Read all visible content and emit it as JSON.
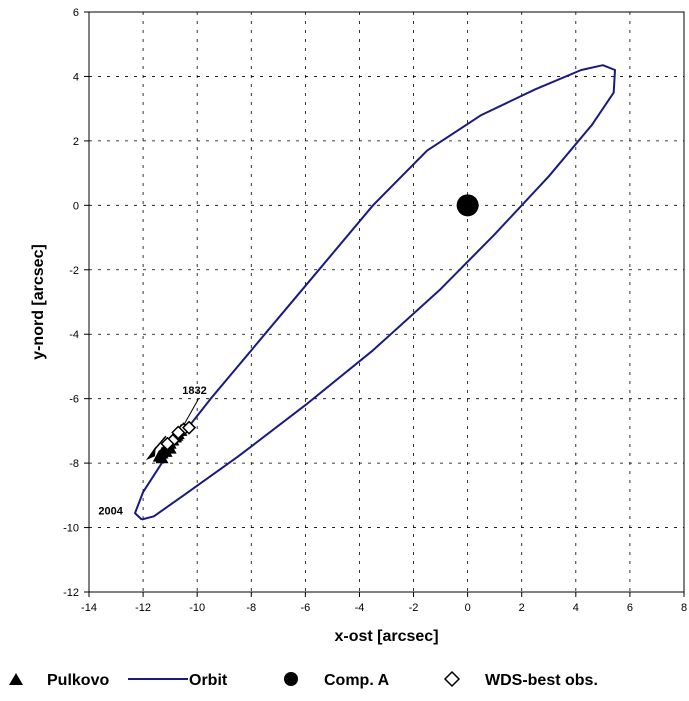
{
  "chart_data": {
    "type": "scatter",
    "xlabel": "x-ost [arcsec]",
    "ylabel": "y-nord [arcsec]",
    "xlim": [
      -14,
      8
    ],
    "ylim": [
      -12,
      6
    ],
    "x_ticks": [
      -14,
      -12,
      -10,
      -8,
      -6,
      -4,
      -2,
      0,
      2,
      4,
      6,
      8
    ],
    "y_ticks": [
      -12,
      -10,
      -8,
      -6,
      -4,
      -2,
      0,
      2,
      4,
      6
    ],
    "grid": true,
    "legend_position": "bottom",
    "colors": {
      "orbit": "#1a1a80",
      "points": "#000000"
    },
    "series": [
      {
        "name": "Pulkovo",
        "marker": "filled-triangle",
        "points": [
          [
            -11.4,
            -7.8
          ],
          [
            -11.3,
            -7.7
          ],
          [
            -11.2,
            -7.6
          ],
          [
            -11.1,
            -7.5
          ],
          [
            -11.0,
            -7.4
          ],
          [
            -10.9,
            -7.3
          ],
          [
            -10.8,
            -7.2
          ],
          [
            -10.7,
            -7.1
          ],
          [
            -10.6,
            -7.0
          ],
          [
            -11.3,
            -7.85
          ],
          [
            -11.0,
            -7.55
          ],
          [
            -10.85,
            -7.2
          ],
          [
            -11.15,
            -7.65
          ],
          [
            -10.75,
            -7.15
          ]
        ]
      },
      {
        "name": "Orbit",
        "marker": "line",
        "points": [
          [
            -12.05,
            -9.75
          ],
          [
            -12.3,
            -9.55
          ],
          [
            -12.0,
            -8.9
          ],
          [
            -11.0,
            -7.6
          ],
          [
            -9.5,
            -6.0
          ],
          [
            -7.5,
            -4.0
          ],
          [
            -5.5,
            -2.0
          ],
          [
            -3.5,
            0.0
          ],
          [
            -1.5,
            1.7
          ],
          [
            0.5,
            2.8
          ],
          [
            2.5,
            3.6
          ],
          [
            4.2,
            4.2
          ],
          [
            5.0,
            4.35
          ],
          [
            5.45,
            4.2
          ],
          [
            5.4,
            3.5
          ],
          [
            4.6,
            2.5
          ],
          [
            3.0,
            0.9
          ],
          [
            1.0,
            -0.9
          ],
          [
            -1.0,
            -2.6
          ],
          [
            -3.5,
            -4.5
          ],
          [
            -6.0,
            -6.2
          ],
          [
            -8.5,
            -7.8
          ],
          [
            -10.5,
            -9.0
          ],
          [
            -11.6,
            -9.65
          ],
          [
            -12.05,
            -9.75
          ]
        ]
      },
      {
        "name": "Comp. A",
        "marker": "filled-circle",
        "points": [
          [
            0,
            0
          ]
        ]
      },
      {
        "name": "WDS-best obs.",
        "marker": "open-diamond",
        "points": [
          [
            -10.5,
            -6.95
          ],
          [
            -10.3,
            -6.9
          ],
          [
            -10.7,
            -7.05
          ],
          [
            -10.9,
            -7.3
          ],
          [
            -11.1,
            -7.4
          ]
        ]
      }
    ],
    "annotations": [
      {
        "text": "1832",
        "x": -10.1,
        "y": -5.85
      },
      {
        "text": "2004",
        "x": -13.2,
        "y": -9.6
      }
    ]
  }
}
